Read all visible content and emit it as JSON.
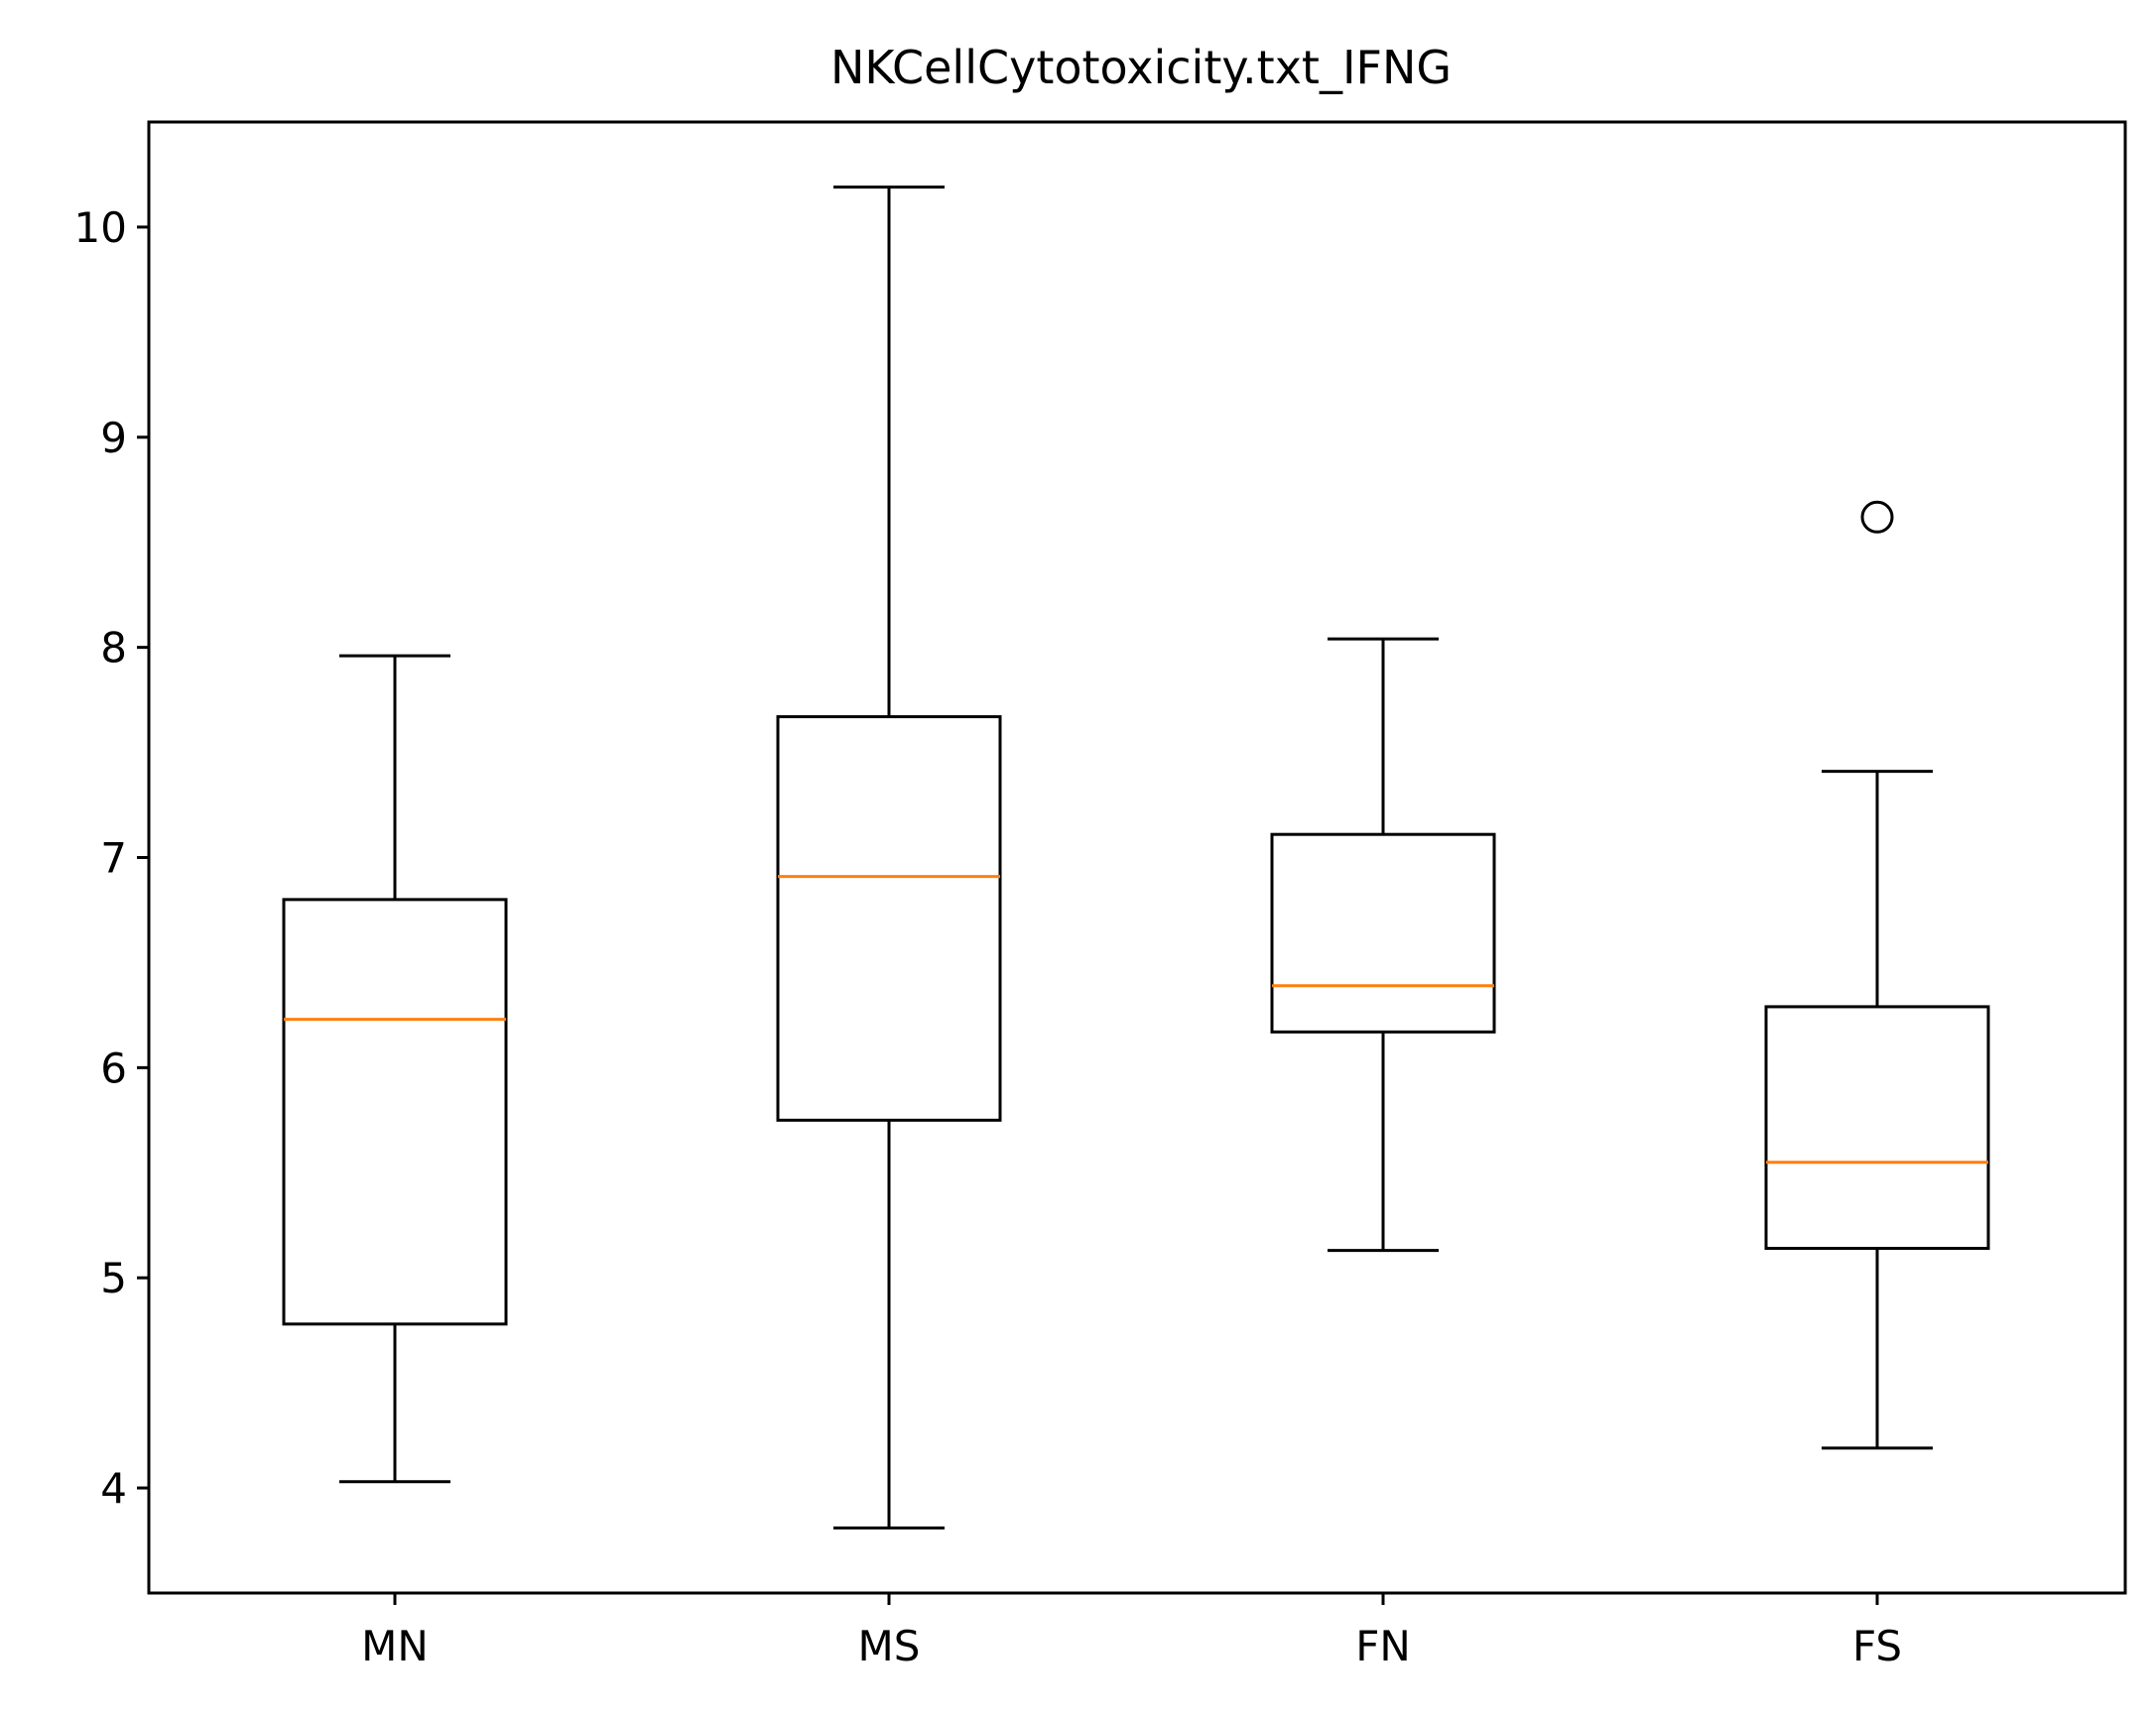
{
  "chart_data": {
    "type": "box",
    "title": "NKCellCytotoxicity.txt_IFNG",
    "xlabel": "",
    "ylabel": "",
    "ylim": [
      3.5,
      10.5
    ],
    "yticks": [
      4,
      5,
      6,
      7,
      8,
      9,
      10
    ],
    "grid": false,
    "categories": [
      "MN",
      "MS",
      "FN",
      "FS"
    ],
    "boxes": [
      {
        "label": "MN",
        "whisker_low": 4.03,
        "q1": 4.78,
        "median": 6.23,
        "q3": 6.8,
        "whisker_high": 7.96,
        "outliers": []
      },
      {
        "label": "MS",
        "whisker_low": 3.81,
        "q1": 5.75,
        "median": 6.91,
        "q3": 7.67,
        "whisker_high": 10.19,
        "outliers": []
      },
      {
        "label": "FN",
        "whisker_low": 5.13,
        "q1": 6.17,
        "median": 6.39,
        "q3": 7.11,
        "whisker_high": 8.04,
        "outliers": []
      },
      {
        "label": "FS",
        "whisker_low": 4.19,
        "q1": 5.14,
        "median": 5.55,
        "q3": 6.29,
        "whisker_high": 7.41,
        "outliers": [
          8.62
        ]
      }
    ],
    "colors": {
      "box": "#000000",
      "median": "#ff7f0e",
      "outlier": "#000000"
    }
  }
}
